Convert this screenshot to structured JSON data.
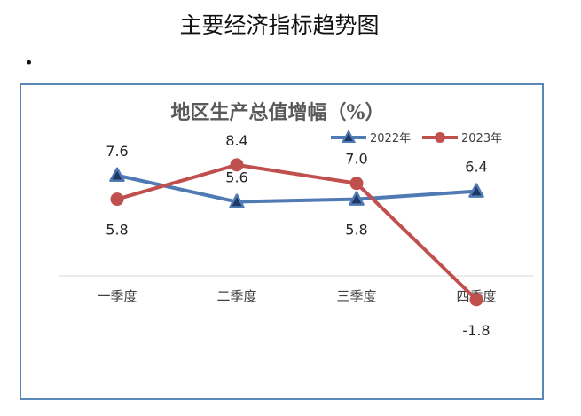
{
  "page": {
    "heading": "主要经济指标趋势图",
    "bullet": "•"
  },
  "chart_data": {
    "type": "line",
    "title": "地区生产总值增幅（%）",
    "categories": [
      "一季度",
      "二季度",
      "三季度",
      "四季度"
    ],
    "ylim": [
      -4,
      10
    ],
    "grid": false,
    "legend_position": "top-right",
    "series": [
      {
        "name": "2022年",
        "values": [
          7.6,
          5.6,
          5.8,
          6.4
        ],
        "labels": [
          "7.6",
          "5.6",
          "5.8",
          "6.4"
        ],
        "color": "#4f7ab3",
        "marker": "triangle"
      },
      {
        "name": "2023年",
        "values": [
          5.8,
          8.4,
          7.0,
          -1.8
        ],
        "labels": [
          "5.8",
          "8.4",
          "7.0",
          "-1.8"
        ],
        "color": "#c0504d",
        "marker": "circle"
      }
    ]
  }
}
